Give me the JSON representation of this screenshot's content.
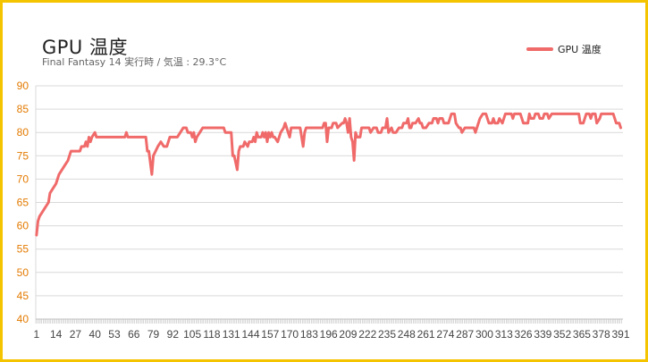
{
  "chart_data": {
    "type": "line",
    "title": "GPU 温度",
    "subtitle": "Final Fantasy 14 実行時 / 気温 : 29.3°C",
    "xlabel": "",
    "ylabel": "",
    "ylim": [
      40,
      90
    ],
    "yticks": [
      40,
      45,
      50,
      55,
      60,
      65,
      70,
      75,
      80,
      85,
      90
    ],
    "x_range": [
      1,
      392
    ],
    "xtick_labels": [
      1,
      14,
      27,
      40,
      53,
      66,
      79,
      92,
      105,
      118,
      131,
      144,
      157,
      170,
      183,
      196,
      209,
      222,
      235,
      248,
      261,
      274,
      287,
      300,
      313,
      326,
      339,
      352,
      365,
      378,
      391
    ],
    "grid": true,
    "legend_position": "top-right",
    "colors": {
      "line": "#f06a6a",
      "tick_label": "#e37a00",
      "grid": "#d9d9d9",
      "frame": "#f5c400"
    },
    "series": [
      {
        "name": "GPU 温度",
        "points": [
          [
            1,
            58
          ],
          [
            2,
            61
          ],
          [
            3,
            62
          ],
          [
            5,
            63
          ],
          [
            7,
            64
          ],
          [
            9,
            65
          ],
          [
            10,
            67
          ],
          [
            12,
            68
          ],
          [
            14,
            69
          ],
          [
            16,
            71
          ],
          [
            18,
            72
          ],
          [
            20,
            73
          ],
          [
            22,
            74
          ],
          [
            24,
            76
          ],
          [
            30,
            76
          ],
          [
            31,
            77
          ],
          [
            33,
            77
          ],
          [
            34,
            78
          ],
          [
            35,
            77
          ],
          [
            36,
            79
          ],
          [
            37,
            78
          ],
          [
            38,
            79
          ],
          [
            40,
            80
          ],
          [
            41,
            79
          ],
          [
            60,
            79
          ],
          [
            61,
            80
          ],
          [
            62,
            79
          ],
          [
            74,
            79
          ],
          [
            75,
            76
          ],
          [
            76,
            76
          ],
          [
            78,
            71
          ],
          [
            79,
            75
          ],
          [
            82,
            77
          ],
          [
            84,
            78
          ],
          [
            86,
            77
          ],
          [
            88,
            77
          ],
          [
            90,
            79
          ],
          [
            95,
            79
          ],
          [
            97,
            80
          ],
          [
            99,
            81
          ],
          [
            101,
            81
          ],
          [
            102,
            80
          ],
          [
            104,
            80
          ],
          [
            105,
            79
          ],
          [
            106,
            80
          ],
          [
            107,
            78
          ],
          [
            108,
            79
          ],
          [
            110,
            80
          ],
          [
            112,
            81
          ],
          [
            126,
            81
          ],
          [
            127,
            80
          ],
          [
            131,
            80
          ],
          [
            132,
            75
          ],
          [
            133,
            75
          ],
          [
            135,
            72
          ],
          [
            136,
            76
          ],
          [
            137,
            77
          ],
          [
            139,
            77
          ],
          [
            140,
            78
          ],
          [
            142,
            77
          ],
          [
            143,
            78
          ],
          [
            145,
            78
          ],
          [
            146,
            79
          ],
          [
            147,
            78
          ],
          [
            148,
            80
          ],
          [
            149,
            79
          ],
          [
            151,
            79
          ],
          [
            152,
            80
          ],
          [
            153,
            79
          ],
          [
            154,
            80
          ],
          [
            155,
            78
          ],
          [
            156,
            80
          ],
          [
            157,
            79
          ],
          [
            158,
            80
          ],
          [
            159,
            79
          ],
          [
            160,
            79
          ],
          [
            162,
            78
          ],
          [
            164,
            80
          ],
          [
            166,
            81
          ],
          [
            167,
            82
          ],
          [
            169,
            80
          ],
          [
            170,
            79
          ],
          [
            171,
            81
          ],
          [
            177,
            81
          ],
          [
            179,
            77
          ],
          [
            180,
            80
          ],
          [
            181,
            81
          ],
          [
            192,
            81
          ],
          [
            193,
            82
          ],
          [
            194,
            82
          ],
          [
            195,
            78
          ],
          [
            196,
            81
          ],
          [
            198,
            81
          ],
          [
            199,
            82
          ],
          [
            201,
            82
          ],
          [
            202,
            81
          ],
          [
            205,
            82
          ],
          [
            206,
            82
          ],
          [
            207,
            83
          ],
          [
            208,
            82
          ],
          [
            209,
            80
          ],
          [
            210,
            83
          ],
          [
            211,
            79
          ],
          [
            212,
            78
          ],
          [
            213,
            74
          ],
          [
            214,
            80
          ],
          [
            215,
            79
          ],
          [
            217,
            79
          ],
          [
            218,
            81
          ],
          [
            223,
            81
          ],
          [
            224,
            80
          ],
          [
            226,
            81
          ],
          [
            228,
            81
          ],
          [
            229,
            80
          ],
          [
            231,
            80
          ],
          [
            232,
            81
          ],
          [
            234,
            81
          ],
          [
            235,
            83
          ],
          [
            236,
            80
          ],
          [
            238,
            81
          ],
          [
            239,
            80
          ],
          [
            241,
            80
          ],
          [
            243,
            81
          ],
          [
            245,
            81
          ],
          [
            246,
            82
          ],
          [
            248,
            82
          ],
          [
            249,
            83
          ],
          [
            250,
            81
          ],
          [
            251,
            81
          ],
          [
            252,
            82
          ],
          [
            254,
            82
          ],
          [
            256,
            83
          ],
          [
            257,
            82
          ],
          [
            258,
            82
          ],
          [
            259,
            81
          ],
          [
            261,
            81
          ],
          [
            263,
            82
          ],
          [
            265,
            82
          ],
          [
            266,
            83
          ],
          [
            268,
            83
          ],
          [
            269,
            82
          ],
          [
            270,
            83
          ],
          [
            272,
            83
          ],
          [
            273,
            82
          ],
          [
            276,
            82
          ],
          [
            278,
            84
          ],
          [
            280,
            84
          ],
          [
            281,
            82
          ],
          [
            283,
            81
          ],
          [
            284,
            81
          ],
          [
            285,
            80
          ],
          [
            287,
            81
          ],
          [
            293,
            81
          ],
          [
            294,
            80
          ],
          [
            296,
            82
          ],
          [
            297,
            83
          ],
          [
            299,
            84
          ],
          [
            301,
            84
          ],
          [
            302,
            83
          ],
          [
            303,
            82
          ],
          [
            305,
            82
          ],
          [
            306,
            83
          ],
          [
            307,
            82
          ],
          [
            309,
            82
          ],
          [
            310,
            83
          ],
          [
            312,
            82
          ],
          [
            314,
            84
          ],
          [
            318,
            84
          ],
          [
            319,
            83
          ],
          [
            320,
            84
          ],
          [
            324,
            84
          ],
          [
            325,
            83
          ],
          [
            326,
            82
          ],
          [
            329,
            82
          ],
          [
            330,
            84
          ],
          [
            331,
            83
          ],
          [
            333,
            83
          ],
          [
            334,
            84
          ],
          [
            336,
            84
          ],
          [
            337,
            83
          ],
          [
            339,
            83
          ],
          [
            340,
            84
          ],
          [
            342,
            84
          ],
          [
            343,
            83
          ],
          [
            345,
            84
          ],
          [
            363,
            84
          ],
          [
            364,
            82
          ],
          [
            366,
            82
          ],
          [
            367,
            83
          ],
          [
            368,
            84
          ],
          [
            370,
            84
          ],
          [
            371,
            83
          ],
          [
            372,
            84
          ],
          [
            374,
            84
          ],
          [
            375,
            82
          ],
          [
            377,
            83
          ],
          [
            378,
            84
          ],
          [
            386,
            84
          ],
          [
            387,
            83
          ],
          [
            388,
            82
          ],
          [
            390,
            82
          ],
          [
            391,
            81
          ]
        ]
      }
    ]
  }
}
